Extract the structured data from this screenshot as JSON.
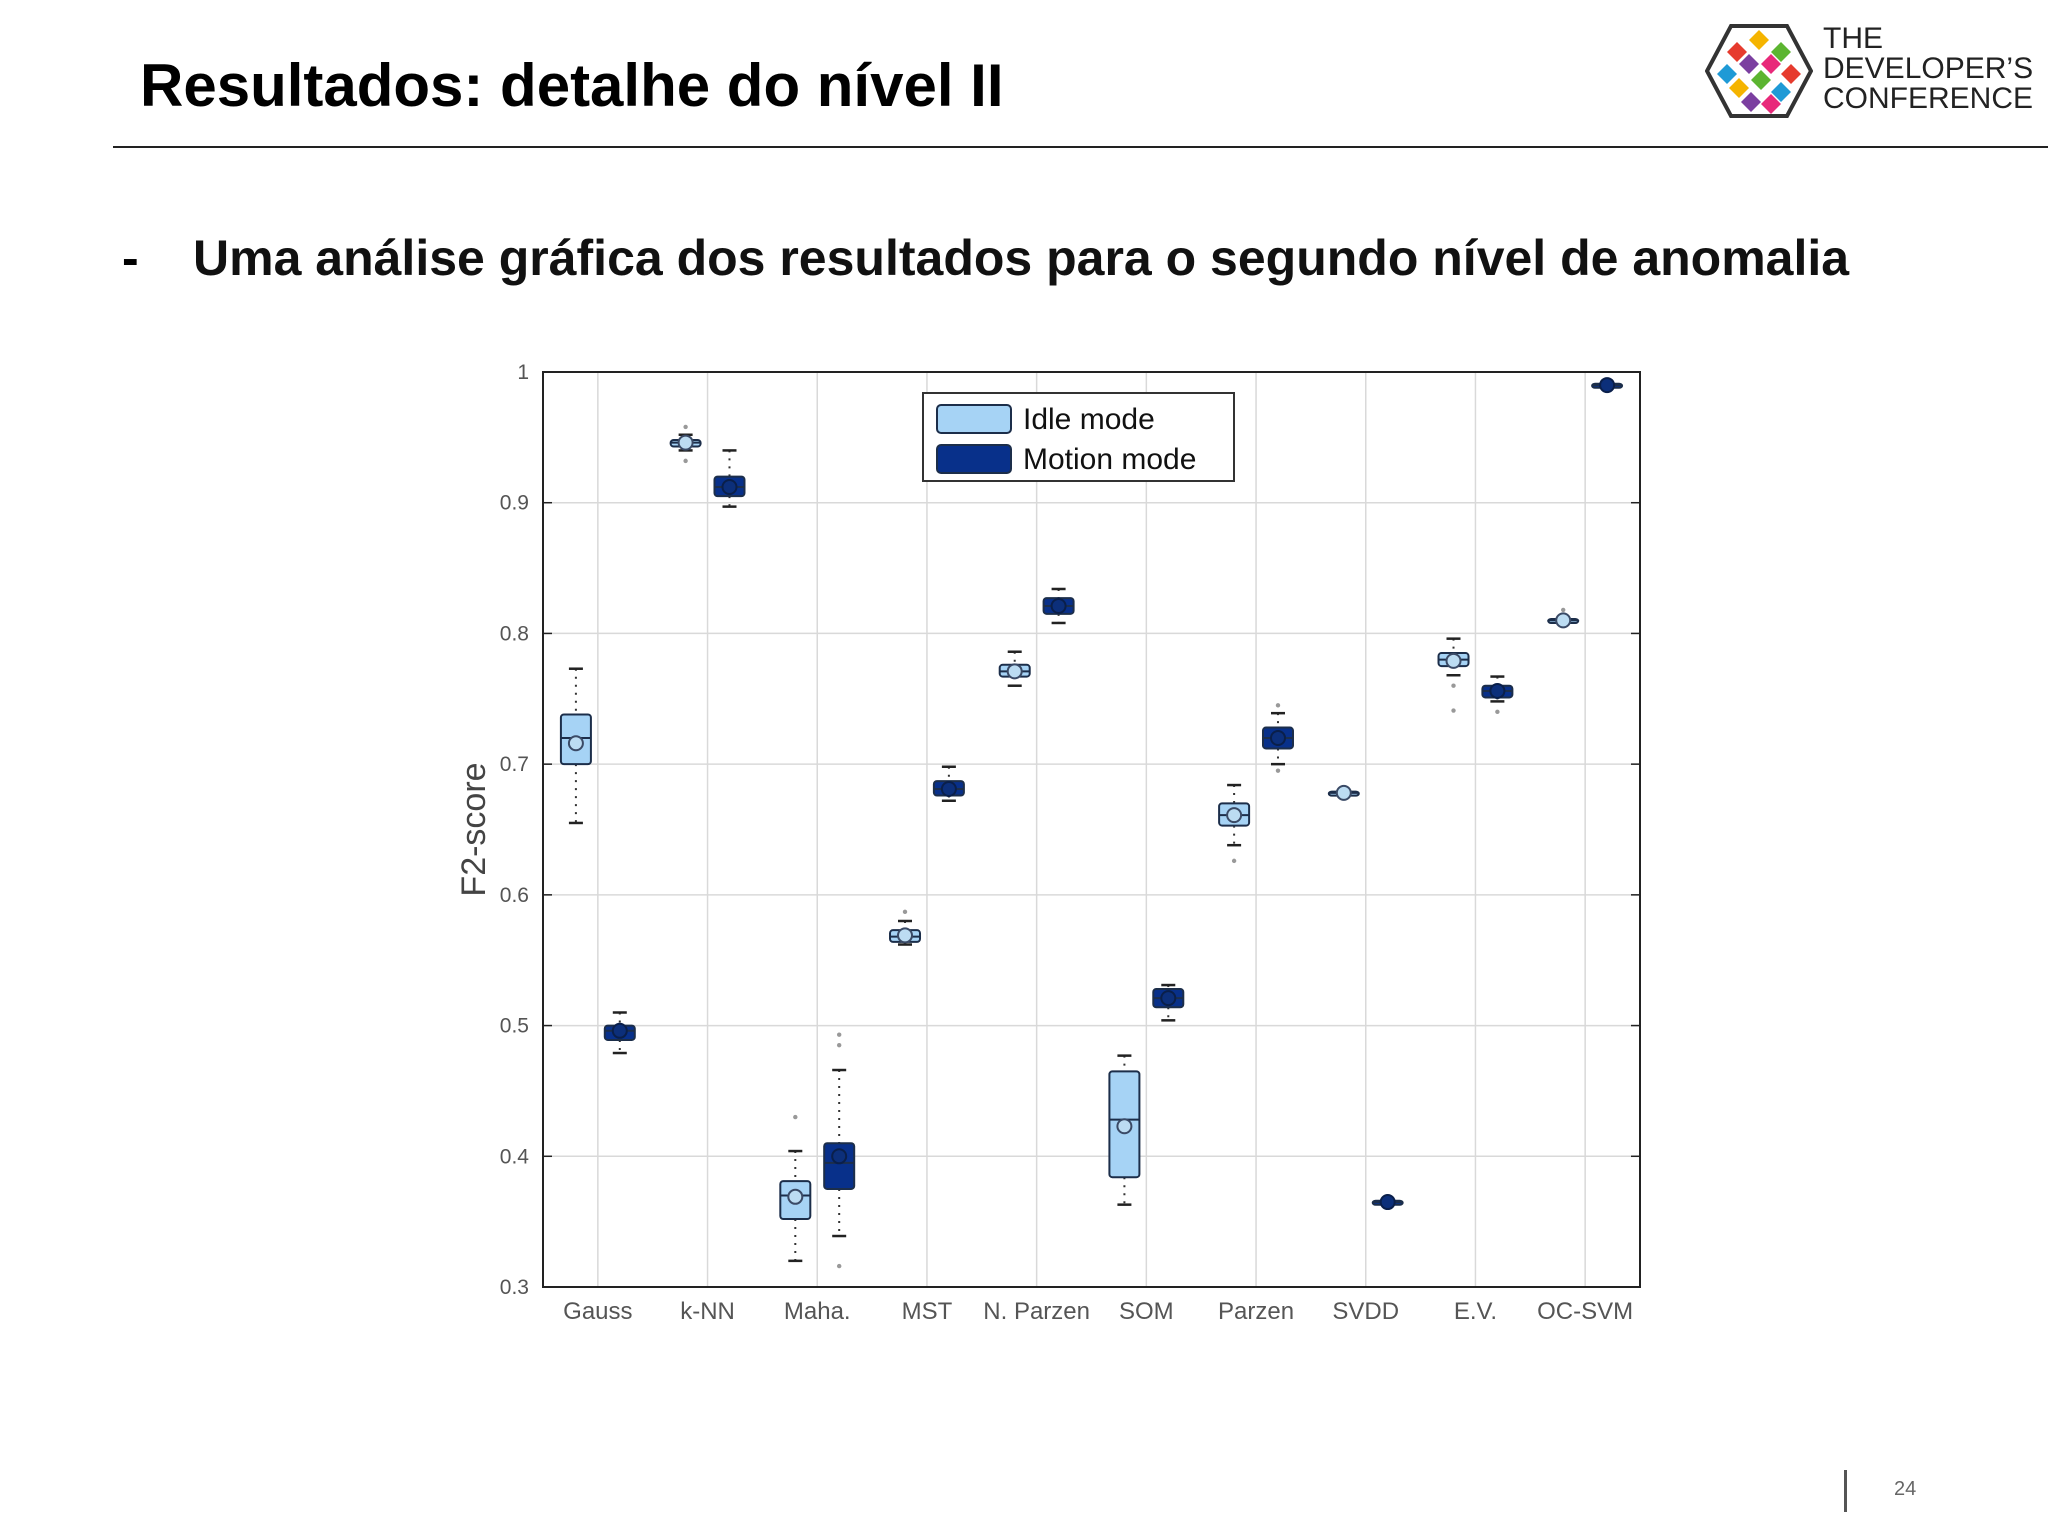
{
  "slide": {
    "title": "Resultados: detalhe do nível II",
    "bullet_marker": "-",
    "bullet_text": "Uma análise gráfica dos resultados para o segundo nível de anomalia",
    "page_number": "24"
  },
  "logo": {
    "line1": "THE",
    "line2": "DEVELOPER’S",
    "line3": "CONFERENCE",
    "mark_colors": [
      "#e63b2e",
      "#f5b400",
      "#5cb531",
      "#1f9ad6",
      "#7b3fa0",
      "#e8297a"
    ]
  },
  "chart_data": {
    "type": "box",
    "xlabel": "",
    "ylabel": "F2-score",
    "ylim": [
      0.3,
      1.0
    ],
    "yticks": [
      0.3,
      0.4,
      0.5,
      0.6,
      0.7,
      0.8,
      0.9,
      1
    ],
    "ytick_labels": [
      "0.3",
      "0.4",
      "0.5",
      "0.6",
      "0.7",
      "0.8",
      "0.9",
      "1"
    ],
    "grid": true,
    "legend_position": "top-center",
    "categories": [
      "Gauss",
      "k-NN",
      "Maha.",
      "MST",
      "N. Parzen",
      "SOM",
      "Parzen",
      "SVDD",
      "E.V.",
      "OC-SVM"
    ],
    "series": [
      {
        "name": "Idle mode",
        "color": "#a6d3f5",
        "boxes": [
          {
            "wlow": 0.655,
            "q1": 0.7,
            "median": 0.72,
            "q3": 0.738,
            "whigh": 0.773,
            "mean": 0.716,
            "outliers": []
          },
          {
            "wlow": 0.94,
            "q1": 0.943,
            "median": 0.946,
            "q3": 0.948,
            "whigh": 0.952,
            "mean": 0.946,
            "outliers": [
              0.958,
              0.932
            ]
          },
          {
            "wlow": 0.32,
            "q1": 0.352,
            "median": 0.37,
            "q3": 0.381,
            "whigh": 0.404,
            "mean": 0.369,
            "outliers": [
              0.43
            ]
          },
          {
            "wlow": 0.562,
            "q1": 0.564,
            "median": 0.568,
            "q3": 0.573,
            "whigh": 0.58,
            "mean": 0.569,
            "outliers": [
              0.587
            ]
          },
          {
            "wlow": 0.76,
            "q1": 0.767,
            "median": 0.771,
            "q3": 0.776,
            "whigh": 0.786,
            "mean": 0.771,
            "outliers": []
          },
          {
            "wlow": 0.363,
            "q1": 0.384,
            "median": 0.428,
            "q3": 0.465,
            "whigh": 0.477,
            "mean": 0.423,
            "outliers": []
          },
          {
            "wlow": 0.638,
            "q1": 0.653,
            "median": 0.661,
            "q3": 0.67,
            "whigh": 0.684,
            "mean": 0.661,
            "outliers": [
              0.626
            ]
          },
          {
            "wlow": 0.678,
            "q1": 0.677,
            "median": 0.678,
            "q3": 0.679,
            "whigh": 0.678,
            "mean": 0.678,
            "outliers": []
          },
          {
            "wlow": 0.768,
            "q1": 0.775,
            "median": 0.78,
            "q3": 0.785,
            "whigh": 0.796,
            "mean": 0.779,
            "outliers": [
              0.741,
              0.76
            ]
          },
          {
            "wlow": 0.809,
            "q1": 0.808,
            "median": 0.81,
            "q3": 0.811,
            "whigh": 0.811,
            "mean": 0.81,
            "outliers": [
              0.818
            ]
          }
        ]
      },
      {
        "name": "Motion mode",
        "color": "#08308a",
        "boxes": [
          {
            "wlow": 0.479,
            "q1": 0.489,
            "median": 0.496,
            "q3": 0.5,
            "whigh": 0.51,
            "mean": 0.496,
            "outliers": []
          },
          {
            "wlow": 0.897,
            "q1": 0.905,
            "median": 0.912,
            "q3": 0.92,
            "whigh": 0.94,
            "mean": 0.912,
            "outliers": []
          },
          {
            "wlow": 0.339,
            "q1": 0.375,
            "median": 0.395,
            "q3": 0.41,
            "whigh": 0.466,
            "mean": 0.4,
            "outliers": [
              0.316,
              0.485,
              0.493
            ]
          },
          {
            "wlow": 0.672,
            "q1": 0.676,
            "median": 0.681,
            "q3": 0.687,
            "whigh": 0.698,
            "mean": 0.681,
            "outliers": []
          },
          {
            "wlow": 0.808,
            "q1": 0.815,
            "median": 0.821,
            "q3": 0.827,
            "whigh": 0.834,
            "mean": 0.821,
            "outliers": []
          },
          {
            "wlow": 0.504,
            "q1": 0.514,
            "median": 0.521,
            "q3": 0.528,
            "whigh": 0.531,
            "mean": 0.521,
            "outliers": []
          },
          {
            "wlow": 0.7,
            "q1": 0.712,
            "median": 0.72,
            "q3": 0.728,
            "whigh": 0.739,
            "mean": 0.72,
            "outliers": [
              0.745,
              0.695
            ]
          },
          {
            "wlow": 0.365,
            "q1": 0.364,
            "median": 0.365,
            "q3": 0.366,
            "whigh": 0.365,
            "mean": 0.365,
            "outliers": []
          },
          {
            "wlow": 0.748,
            "q1": 0.751,
            "median": 0.756,
            "q3": 0.76,
            "whigh": 0.767,
            "mean": 0.756,
            "outliers": [
              0.74
            ]
          },
          {
            "wlow": 0.99,
            "q1": 0.989,
            "median": 0.99,
            "q3": 0.991,
            "whigh": 0.99,
            "mean": 0.99,
            "outliers": []
          }
        ]
      }
    ]
  }
}
